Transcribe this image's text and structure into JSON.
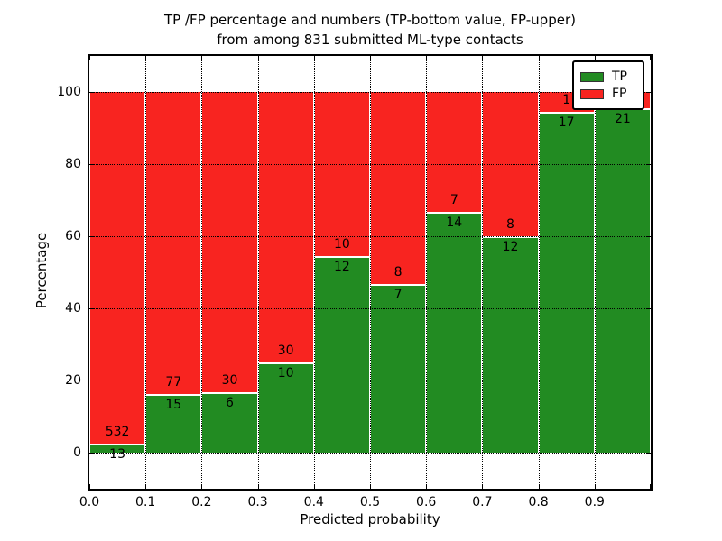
{
  "figure": {
    "title_line1": "TP /FP percentage and numbers (TP-bottom value, FP-upper)",
    "title_line2": "from among 831 submitted ML-type contacts"
  },
  "axes": {
    "xlabel": "Predicted probability",
    "ylabel": "Percentage",
    "x_tick_labels": [
      "0.0",
      "0.1",
      "0.2",
      "0.3",
      "0.4",
      "0.5",
      "0.6",
      "0.7",
      "0.8",
      "0.9"
    ],
    "y_tick_labels": [
      "0",
      "20",
      "40",
      "60",
      "80",
      "100"
    ],
    "y_tick_values": [
      0,
      20,
      40,
      60,
      80,
      100
    ]
  },
  "legend": {
    "items": [
      {
        "name": "tp-swatch",
        "label": "TP",
        "color": "#228b22"
      },
      {
        "name": "fp-swatch",
        "label": "FP",
        "color": "#f82420"
      }
    ]
  },
  "chart_data": {
    "type": "bar",
    "stacked": true,
    "normalized_to_percent": true,
    "title": "TP /FP percentage and numbers (TP-bottom value, FP-upper) from among 831 submitted ML-type contacts",
    "xlabel": "Predicted probability",
    "ylabel": "Percentage",
    "categories": [
      "0.0-0.1",
      "0.1-0.2",
      "0.2-0.3",
      "0.3-0.4",
      "0.4-0.5",
      "0.5-0.6",
      "0.6-0.7",
      "0.7-0.8",
      "0.8-0.9",
      "0.9-1.0"
    ],
    "series": [
      {
        "name": "TP",
        "color": "#228b22",
        "values": [
          13,
          15,
          6,
          10,
          12,
          7,
          14,
          12,
          17,
          21
        ]
      },
      {
        "name": "FP",
        "color": "#f82420",
        "values": [
          532,
          77,
          30,
          30,
          10,
          8,
          7,
          8,
          1,
          1
        ]
      }
    ],
    "tp_percent": [
      2.39,
      16.3,
      16.67,
      25.0,
      54.55,
      46.67,
      66.67,
      60.0,
      94.44,
      95.45
    ],
    "bar_value_labels": {
      "fp": [
        "532",
        "77",
        "30",
        "30",
        "10",
        "8",
        "7",
        "8",
        "1",
        ""
      ],
      "tp": [
        "13",
        "15",
        "6",
        "10",
        "12",
        "7",
        "14",
        "12",
        "17",
        "21"
      ]
    },
    "total_contacts": 831,
    "xlim": [
      0.0,
      1.0
    ],
    "ylim": [
      -10,
      110
    ],
    "grid": true,
    "grid_style": "dotted",
    "legend_position": "upper right",
    "colors": {
      "tp": "#228b22",
      "fp": "#f82420",
      "edge": "#ffffff",
      "axis": "#000000"
    }
  }
}
